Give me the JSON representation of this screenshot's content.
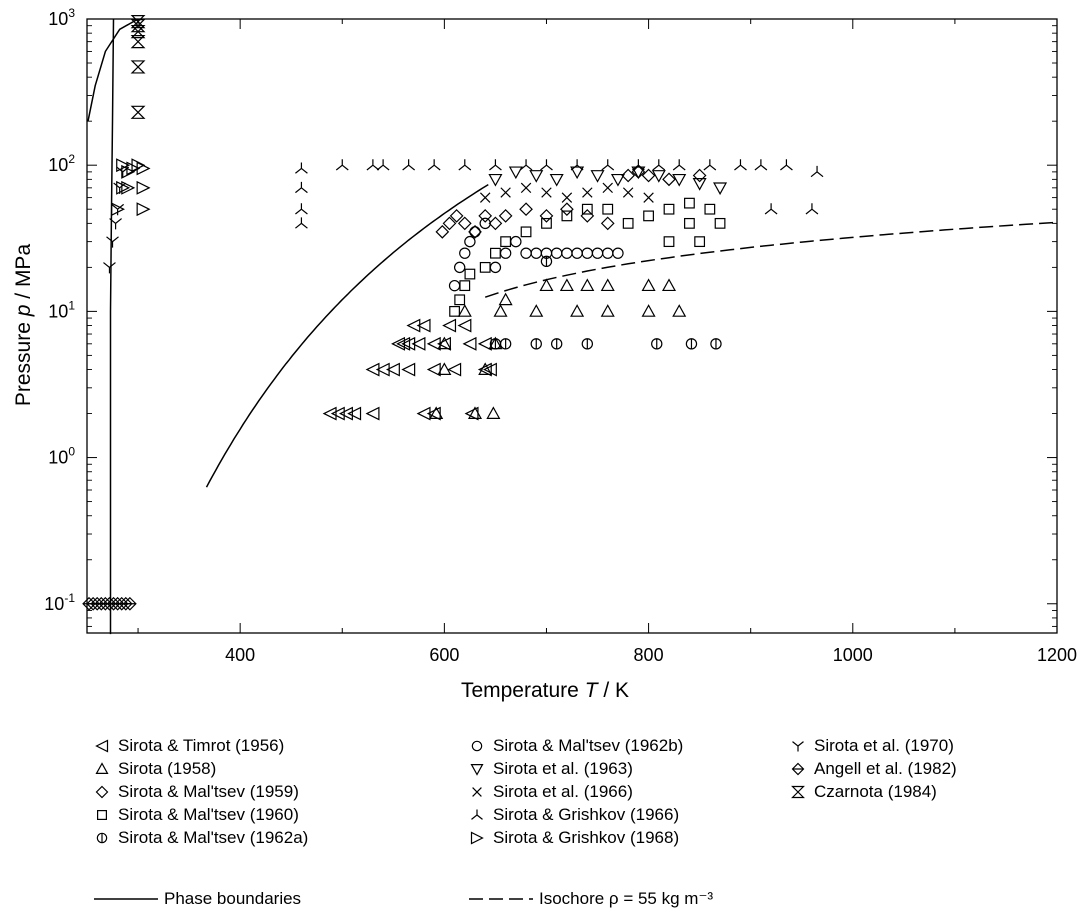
{
  "chart_data": {
    "type": "scatter",
    "xlabel": "Temperature T / K",
    "ylabel": "Pressure p / MPa",
    "xlim": [
      250,
      1200
    ],
    "ylim_log10": [
      -1.2,
      3
    ],
    "y_scale": "log",
    "x_ticks": [
      "400",
      "600",
      "800",
      "1000",
      "1200"
    ],
    "y_ticks": [
      "10^-1",
      "10^0",
      "10^1",
      "10^2",
      "10^3"
    ],
    "legend_position": "bottom",
    "series": [
      {
        "name": "Sirota & Timrot (1956)",
        "marker": "tri-left",
        "points": [
          [
            488,
            2
          ],
          [
            496,
            2
          ],
          [
            504,
            2
          ],
          [
            512,
            2
          ],
          [
            530,
            2
          ],
          [
            580,
            2
          ],
          [
            590,
            2
          ],
          [
            627,
            2
          ],
          [
            530,
            4
          ],
          [
            540,
            4
          ],
          [
            550,
            4
          ],
          [
            565,
            4
          ],
          [
            590,
            4
          ],
          [
            610,
            4
          ],
          [
            640,
            4
          ],
          [
            645,
            4
          ],
          [
            555,
            6
          ],
          [
            560,
            6
          ],
          [
            565,
            6
          ],
          [
            575,
            6
          ],
          [
            590,
            6
          ],
          [
            600,
            6
          ],
          [
            625,
            6
          ],
          [
            640,
            6
          ],
          [
            570,
            8
          ],
          [
            580,
            8
          ],
          [
            605,
            8
          ],
          [
            620,
            8
          ]
        ]
      },
      {
        "name": "Sirota (1958)",
        "marker": "triangle-up",
        "points": [
          [
            592,
            2
          ],
          [
            648,
            2
          ],
          [
            630,
            2
          ],
          [
            600,
            4
          ],
          [
            640,
            4
          ],
          [
            600,
            6
          ],
          [
            650,
            6
          ],
          [
            620,
            10
          ],
          [
            655,
            10
          ],
          [
            690,
            10
          ],
          [
            730,
            10
          ],
          [
            760,
            10
          ],
          [
            800,
            10
          ],
          [
            830,
            10
          ],
          [
            660,
            12
          ],
          [
            700,
            15
          ],
          [
            720,
            15
          ],
          [
            740,
            15
          ],
          [
            760,
            15
          ],
          [
            800,
            15
          ],
          [
            820,
            15
          ]
        ]
      },
      {
        "name": "Sirota & Mal'tsev (1959)",
        "marker": "diamond",
        "points": [
          [
            598,
            35
          ],
          [
            605,
            40
          ],
          [
            612,
            45
          ],
          [
            620,
            40
          ],
          [
            630,
            35
          ],
          [
            640,
            45
          ],
          [
            650,
            40
          ],
          [
            660,
            45
          ],
          [
            680,
            50
          ],
          [
            700,
            45
          ],
          [
            720,
            50
          ],
          [
            740,
            45
          ],
          [
            760,
            40
          ],
          [
            780,
            85
          ],
          [
            790,
            90
          ],
          [
            800,
            85
          ],
          [
            820,
            80
          ],
          [
            850,
            85
          ]
        ]
      },
      {
        "name": "Sirota & Mal'tsev (1960)",
        "marker": "square",
        "points": [
          [
            610,
            10
          ],
          [
            615,
            12
          ],
          [
            620,
            15
          ],
          [
            625,
            18
          ],
          [
            640,
            20
          ],
          [
            650,
            25
          ],
          [
            660,
            30
          ],
          [
            680,
            35
          ],
          [
            700,
            40
          ],
          [
            720,
            45
          ],
          [
            740,
            50
          ],
          [
            760,
            50
          ],
          [
            780,
            40
          ],
          [
            800,
            45
          ],
          [
            820,
            50
          ],
          [
            840,
            55
          ],
          [
            860,
            50
          ],
          [
            870,
            40
          ],
          [
            840,
            40
          ],
          [
            820,
            30
          ],
          [
            850,
            30
          ]
        ]
      },
      {
        "name": "Sirota & Mal'tsev (1962a)",
        "marker": "circle-bar",
        "points": [
          [
            650,
            6
          ],
          [
            660,
            6
          ],
          [
            690,
            6
          ],
          [
            710,
            6
          ],
          [
            740,
            6
          ],
          [
            808,
            6
          ],
          [
            842,
            6
          ],
          [
            866,
            6
          ],
          [
            700,
            22
          ]
        ]
      },
      {
        "name": "Sirota & Mal'tsev (1962b)",
        "marker": "circle",
        "points": [
          [
            610,
            15
          ],
          [
            615,
            20
          ],
          [
            620,
            25
          ],
          [
            625,
            30
          ],
          [
            630,
            35
          ],
          [
            640,
            40
          ],
          [
            650,
            20
          ],
          [
            660,
            25
          ],
          [
            670,
            30
          ],
          [
            680,
            25
          ],
          [
            690,
            25
          ],
          [
            700,
            25
          ],
          [
            710,
            25
          ],
          [
            720,
            25
          ],
          [
            730,
            25
          ],
          [
            740,
            25
          ],
          [
            750,
            25
          ],
          [
            760,
            25
          ],
          [
            770,
            25
          ]
        ]
      },
      {
        "name": "Sirota et al. (1963)",
        "marker": "triangle-down",
        "points": [
          [
            650,
            80
          ],
          [
            670,
            90
          ],
          [
            690,
            85
          ],
          [
            710,
            80
          ],
          [
            730,
            90
          ],
          [
            750,
            85
          ],
          [
            770,
            80
          ],
          [
            790,
            90
          ],
          [
            810,
            85
          ],
          [
            830,
            80
          ],
          [
            850,
            75
          ],
          [
            870,
            70
          ]
        ]
      },
      {
        "name": "Sirota et al. (1966)",
        "marker": "cross",
        "points": [
          [
            640,
            60
          ],
          [
            660,
            65
          ],
          [
            680,
            70
          ],
          [
            700,
            65
          ],
          [
            720,
            60
          ],
          [
            740,
            65
          ],
          [
            760,
            70
          ],
          [
            780,
            65
          ],
          [
            800,
            60
          ]
        ]
      },
      {
        "name": "Sirota & Grishkov (1966)",
        "marker": "tri-down",
        "points": [
          [
            460,
            40
          ],
          [
            460,
            50
          ],
          [
            460,
            70
          ],
          [
            460,
            95
          ],
          [
            500,
            100
          ],
          [
            530,
            100
          ],
          [
            540,
            100
          ],
          [
            565,
            100
          ],
          [
            590,
            100
          ],
          [
            620,
            100
          ],
          [
            650,
            100
          ],
          [
            680,
            100
          ],
          [
            700,
            100
          ],
          [
            730,
            100
          ],
          [
            760,
            100
          ],
          [
            790,
            100
          ],
          [
            810,
            100
          ],
          [
            830,
            100
          ],
          [
            860,
            100
          ],
          [
            890,
            100
          ],
          [
            910,
            100
          ],
          [
            920,
            50
          ],
          [
            935,
            100
          ],
          [
            960,
            50
          ],
          [
            965,
            90
          ]
        ]
      },
      {
        "name": "Sirota & Grishkov (1968)",
        "marker": "tri-right",
        "points": [
          [
            280,
            50
          ],
          [
            285,
            70
          ],
          [
            290,
            90
          ],
          [
            295,
            95
          ],
          [
            300,
            100
          ],
          [
            305,
            50
          ],
          [
            305,
            70
          ],
          [
            305,
            95
          ],
          [
            285,
            100
          ],
          [
            290,
            70
          ]
        ]
      },
      {
        "name": "Sirota et al. (1970)",
        "marker": "tri-up",
        "points": [
          [
            272,
            20
          ],
          [
            275,
            30
          ],
          [
            278,
            40
          ],
          [
            280,
            50
          ],
          [
            282,
            70
          ],
          [
            285,
            90
          ]
        ]
      },
      {
        "name": "Angell et al. (1982)",
        "marker": "diamond-bar",
        "points": [
          [
            252,
            0.1
          ],
          [
            256,
            0.1
          ],
          [
            260,
            0.1
          ],
          [
            264,
            0.1
          ],
          [
            268,
            0.1
          ],
          [
            272,
            0.1
          ],
          [
            276,
            0.1
          ],
          [
            280,
            0.1
          ],
          [
            284,
            0.1
          ],
          [
            288,
            0.1
          ],
          [
            292,
            0.1
          ]
        ]
      },
      {
        "name": "Czarnota (1984)",
        "marker": "hourglass",
        "points": [
          [
            300,
            230
          ],
          [
            300,
            470
          ],
          [
            300,
            700
          ],
          [
            300,
            820
          ],
          [
            300,
            900
          ],
          [
            300,
            960
          ]
        ]
      }
    ],
    "curves": [
      {
        "name": "Phase boundaries",
        "style": "solid"
      },
      {
        "name": "Isochore ρ = 55 kg m⁻³",
        "style": "dashed"
      }
    ]
  },
  "labels": {
    "xlabel_pre": "Temperature ",
    "xlabel_sym": "T",
    "xlabel_post": " / K",
    "ylabel_pre": "Pressure ",
    "ylabel_sym": "p",
    "ylabel_post": " / MPa"
  },
  "legend": {
    "col1": [
      "Sirota & Timrot (1956)",
      "Sirota (1958)",
      "Sirota & Mal'tsev (1959)",
      "Sirota & Mal'tsev (1960)",
      "Sirota & Mal'tsev (1962a)"
    ],
    "col2": [
      "Sirota & Mal'tsev (1962b)",
      "Sirota et al. (1963)",
      "Sirota et al. (1966)",
      "Sirota & Grishkov (1966)",
      "Sirota & Grishkov (1968)"
    ],
    "col3": [
      "Sirota et al. (1970)",
      "Angell et al. (1982)",
      "Czarnota (1984)"
    ],
    "phase_label": "Phase boundaries",
    "isochore_label": "Isochore ρ = 55 kg m⁻³"
  }
}
